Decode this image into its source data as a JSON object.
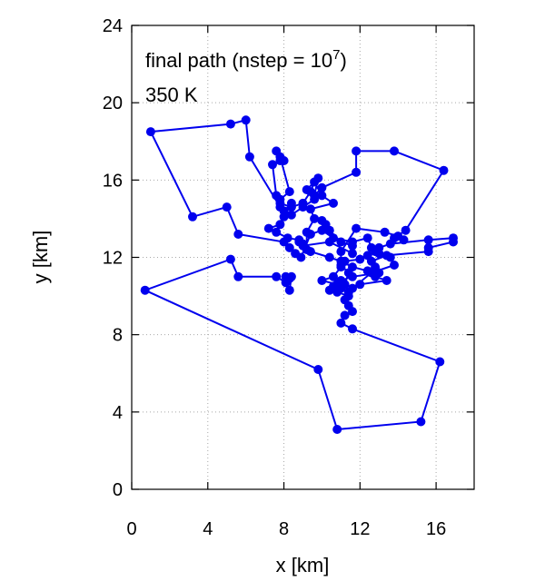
{
  "chart_data": {
    "type": "line",
    "xlabel": "x [km]",
    "ylabel": "y [km]",
    "xlim": [
      0,
      18
    ],
    "ylim": [
      0,
      24
    ],
    "xticks": [
      0,
      4,
      8,
      12,
      16
    ],
    "yticks": [
      0,
      4,
      8,
      12,
      16,
      20,
      24
    ],
    "grid": true,
    "annotations": {
      "line1_prefix": "final path (nstep = 10",
      "line1_exp": "7",
      "line1_suffix": ")",
      "line2": "350 K"
    },
    "series_color": "#0000ee",
    "series": [
      {
        "markers": true,
        "x": [
          10.2,
          10.0,
          10.4,
          11.0,
          11.6,
          11.6,
          10.4,
          9.0,
          8.8,
          9.2,
          9.2,
          9.6,
          9.4,
          10.6,
          10.0,
          9.6,
          9.4,
          9.0,
          8.4,
          7.8,
          7.6,
          7.4,
          7.8,
          8.0,
          7.6,
          7.8,
          8.3,
          7.8,
          7.8,
          6.2,
          6.0,
          5.2,
          1.0,
          3.2,
          5.0,
          5.6,
          8.0,
          8.3,
          8.6,
          8.9,
          9.4,
          10.0,
          10.6,
          11.6,
          12.4,
          12.6,
          13.0,
          13.6,
          13.8,
          12.6,
          11.6,
          11.2,
          11.4,
          11.0,
          11.0,
          11.8,
          13.3,
          14.0,
          14.3,
          13.8,
          14.4,
          16.4,
          13.8,
          11.8,
          11.8,
          10.0,
          9.6,
          9.8,
          9.2,
          9.6,
          9.0,
          8.4,
          8.0,
          8.4,
          8.0,
          7.8,
          7.2,
          7.6,
          8.2,
          8.8,
          9.0,
          9.4,
          10.4,
          11.0,
          11.6,
          12.4,
          12.8,
          13.4,
          12.0,
          11.4,
          11.0,
          10.8,
          10.0,
          10.6,
          11.0,
          11.2,
          12.0,
          12.4,
          12.8,
          13.0,
          13.6,
          15.6,
          16.9,
          16.9,
          15.6,
          15.6,
          13.4,
          12.6,
          12.8,
          13.0,
          11.6,
          11.0,
          10.8,
          10.6,
          10.4,
          10.8,
          11.4,
          11.2,
          11.4,
          11.6,
          11.2,
          11.0,
          11.6,
          16.2,
          15.2,
          10.8,
          9.8,
          0.7,
          5.2,
          5.6,
          7.6,
          8.1,
          8.3,
          8.4,
          8.3,
          8.1
        ],
        "y": [
          13.7,
          13.9,
          13.4,
          12.8,
          12.6,
          12.2,
          12.8,
          12.6,
          12.8,
          12.4,
          13.3,
          14.0,
          14.5,
          14.8,
          15.2,
          15.9,
          15.4,
          14.8,
          14.6,
          14.8,
          15.2,
          16.8,
          17.0,
          17.0,
          17.5,
          17.2,
          15.4,
          15.0,
          14.6,
          17.2,
          19.1,
          18.9,
          18.5,
          14.1,
          14.6,
          13.2,
          12.8,
          12.5,
          12.2,
          12.0,
          13.2,
          13.4,
          13.0,
          12.8,
          13.0,
          12.5,
          12.2,
          12.0,
          11.6,
          11.2,
          10.4,
          10.6,
          11.2,
          11.6,
          12.3,
          13.5,
          13.3,
          13.1,
          12.9,
          13.0,
          13.4,
          16.5,
          17.5,
          17.5,
          16.4,
          15.6,
          15.2,
          16.1,
          15.5,
          15.0,
          14.6,
          14.2,
          14.4,
          14.8,
          14.1,
          13.7,
          13.5,
          13.3,
          13.0,
          12.9,
          12.7,
          12.3,
          12.0,
          11.8,
          11.5,
          11.3,
          11.0,
          10.8,
          10.6,
          10.2,
          10.4,
          10.6,
          10.8,
          11.0,
          11.5,
          11.8,
          11.9,
          12.1,
          12.3,
          12.5,
          12.7,
          12.9,
          13.0,
          12.8,
          12.5,
          12.3,
          12.1,
          11.8,
          11.5,
          11.2,
          11.0,
          10.8,
          10.6,
          10.5,
          10.3,
          10.2,
          10.0,
          9.8,
          9.5,
          9.2,
          9.0,
          8.6,
          8.3,
          6.6,
          3.5,
          3.1,
          6.2,
          10.3,
          11.9,
          11.0,
          11.0,
          10.7,
          10.3,
          11.0,
          10.9,
          11.0
        ]
      }
    ]
  }
}
